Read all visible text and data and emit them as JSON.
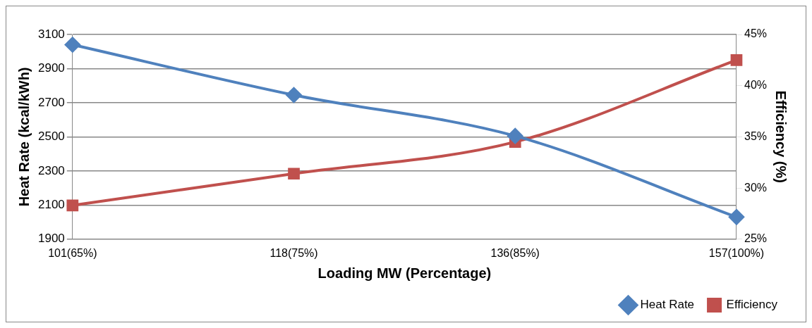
{
  "chart_data": {
    "type": "line",
    "xlabel": "Loading MW (Percentage)",
    "ylabel": "Heat Rate (kcal/kWh)",
    "y2label": "Efficiency (%)",
    "categories": [
      "101(65%)",
      "118(75%)",
      "136(85%)",
      "157(100%)"
    ],
    "series": [
      {
        "name": "Heat Rate",
        "color": "#4f81bd",
        "values": [
          3040,
          2745,
          2505,
          2030
        ],
        "marker": "diamond"
      },
      {
        "name": "Efficiency",
        "color": "#c0504d",
        "values": [
          28.3,
          31.4,
          34.5,
          42.5
        ],
        "axis": "y2",
        "marker": "square"
      }
    ],
    "ylim": [
      1900,
      3100
    ],
    "yticks": [
      1900,
      2100,
      2300,
      2500,
      2700,
      2900,
      3100
    ],
    "y2lim": [
      25,
      45
    ],
    "y2ticks": [
      {
        "value": 25,
        "label": "25%"
      },
      {
        "value": 30,
        "label": "30%"
      },
      {
        "value": 35,
        "label": "35%"
      },
      {
        "value": 40,
        "label": "40%"
      },
      {
        "value": 45,
        "label": "45%"
      }
    ],
    "grid": "y",
    "legend": "bottom right"
  }
}
